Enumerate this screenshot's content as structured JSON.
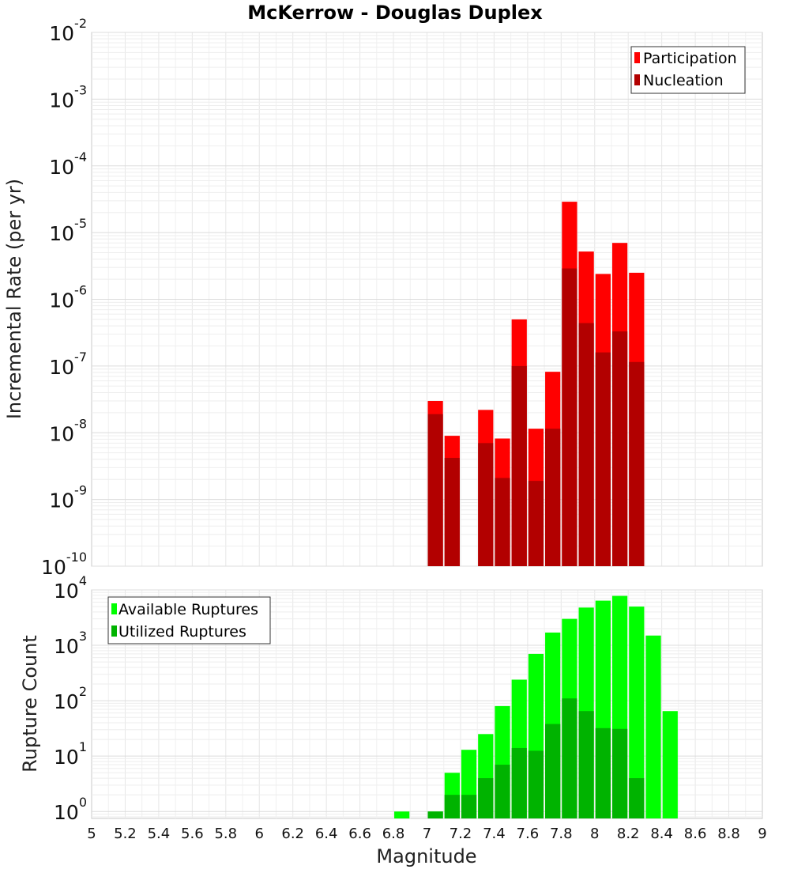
{
  "chart_data": [
    {
      "type": "bar",
      "title": "McKerrow - Douglas Duplex",
      "ylabel": "Incremental Rate (per yr)",
      "xlabel": "",
      "yscale": "log",
      "ylim": [
        1e-10,
        0.01
      ],
      "xlim": [
        5,
        9
      ],
      "y_ticks": [
        {
          "base": "10",
          "exp": "-10",
          "value": 1e-10
        },
        {
          "base": "10",
          "exp": "-9",
          "value": 1e-09
        },
        {
          "base": "10",
          "exp": "-8",
          "value": 1e-08
        },
        {
          "base": "10",
          "exp": "-7",
          "value": 1e-07
        },
        {
          "base": "10",
          "exp": "-6",
          "value": 1e-06
        },
        {
          "base": "10",
          "exp": "-5",
          "value": 1e-05
        },
        {
          "base": "10",
          "exp": "-4",
          "value": 0.0001
        },
        {
          "base": "10",
          "exp": "-3",
          "value": 0.001
        },
        {
          "base": "10",
          "exp": "-2",
          "value": 0.01
        }
      ],
      "legend_position": "top-right",
      "grid": true,
      "x": [
        7.05,
        7.15,
        7.35,
        7.45,
        7.55,
        7.65,
        7.75,
        7.85,
        7.95,
        8.05,
        8.15,
        8.25
      ],
      "series": [
        {
          "name": "Participation",
          "color": "#ff0000",
          "values": [
            3e-08,
            9e-09,
            2.2e-08,
            8.2e-09,
            5e-07,
            1.15e-08,
            8.2e-08,
            2.9e-05,
            5.2e-06,
            2.4e-06,
            7e-06,
            2.5e-06
          ]
        },
        {
          "name": "Nucleation",
          "color": "#b20000",
          "values": [
            1.9e-08,
            4.2e-09,
            7e-09,
            2.1e-09,
            1e-07,
            1.9e-09,
            1.15e-08,
            2.9e-06,
            4.4e-07,
            1.6e-07,
            3.3e-07,
            1.15e-07
          ]
        }
      ]
    },
    {
      "type": "bar",
      "title": "",
      "ylabel": "Rupture Count",
      "xlabel": "Magnitude",
      "yscale": "log",
      "ylim": [
        0.75,
        10000
      ],
      "xlim": [
        5,
        9
      ],
      "y_ticks": [
        {
          "base": "10",
          "exp": "0",
          "value": 1
        },
        {
          "base": "10",
          "exp": "1",
          "value": 10
        },
        {
          "base": "10",
          "exp": "2",
          "value": 100
        },
        {
          "base": "10",
          "exp": "3",
          "value": 1000
        },
        {
          "base": "10",
          "exp": "4",
          "value": 10000
        }
      ],
      "x_ticks": [
        "5",
        "5.2",
        "5.4",
        "5.6",
        "5.8",
        "6",
        "6.2",
        "6.4",
        "6.6",
        "6.8",
        "7",
        "7.2",
        "7.4",
        "7.6",
        "7.8",
        "8",
        "8.2",
        "8.4",
        "8.6",
        "8.8",
        "9"
      ],
      "legend_position": "top-left",
      "grid": true,
      "x": [
        6.85,
        7.05,
        7.15,
        7.25,
        7.35,
        7.45,
        7.55,
        7.65,
        7.75,
        7.85,
        7.95,
        8.05,
        8.15,
        8.25,
        8.35,
        8.45
      ],
      "series": [
        {
          "name": "Available Ruptures",
          "color": "#00ff00",
          "values": [
            1,
            1,
            5,
            13,
            25,
            80,
            240,
            700,
            1700,
            3000,
            4800,
            6400,
            7800,
            5000,
            1500,
            65
          ]
        },
        {
          "name": "Utilized Ruptures",
          "color": "#00b300",
          "values": [
            0,
            1,
            2,
            2,
            4,
            7,
            14,
            12.5,
            38,
            110,
            65,
            32,
            31,
            4,
            0,
            0
          ]
        }
      ]
    }
  ]
}
